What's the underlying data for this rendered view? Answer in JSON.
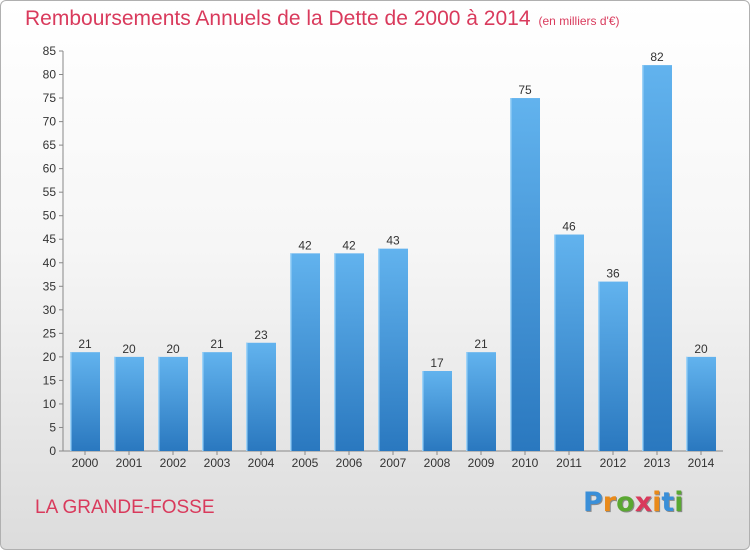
{
  "chart_data": {
    "type": "bar",
    "title": "Remboursements Annuels de la Dette de 2000 à 2014",
    "subtitle": "(en milliers d'€)",
    "categories": [
      "2000",
      "2001",
      "2002",
      "2003",
      "2004",
      "2005",
      "2006",
      "2007",
      "2008",
      "2009",
      "2010",
      "2011",
      "2012",
      "2013",
      "2014"
    ],
    "values": [
      21,
      20,
      20,
      21,
      23,
      42,
      42,
      43,
      17,
      21,
      75,
      46,
      36,
      82,
      20
    ],
    "ylim": [
      0,
      85
    ],
    "yticks": [
      0,
      5,
      10,
      15,
      20,
      25,
      30,
      35,
      40,
      45,
      50,
      55,
      60,
      65,
      70,
      75,
      80,
      85
    ],
    "grid": false,
    "bar_color": "#3d8fd6"
  },
  "place_name": "LA GRANDE-FOSSE",
  "logo": {
    "text": "Proxiti",
    "letter_colors": [
      "#3a8fd8",
      "#e98a1a",
      "#5aa832",
      "#d93a5c",
      "#e98a1a",
      "#3a8fd8",
      "#5aa832"
    ]
  }
}
